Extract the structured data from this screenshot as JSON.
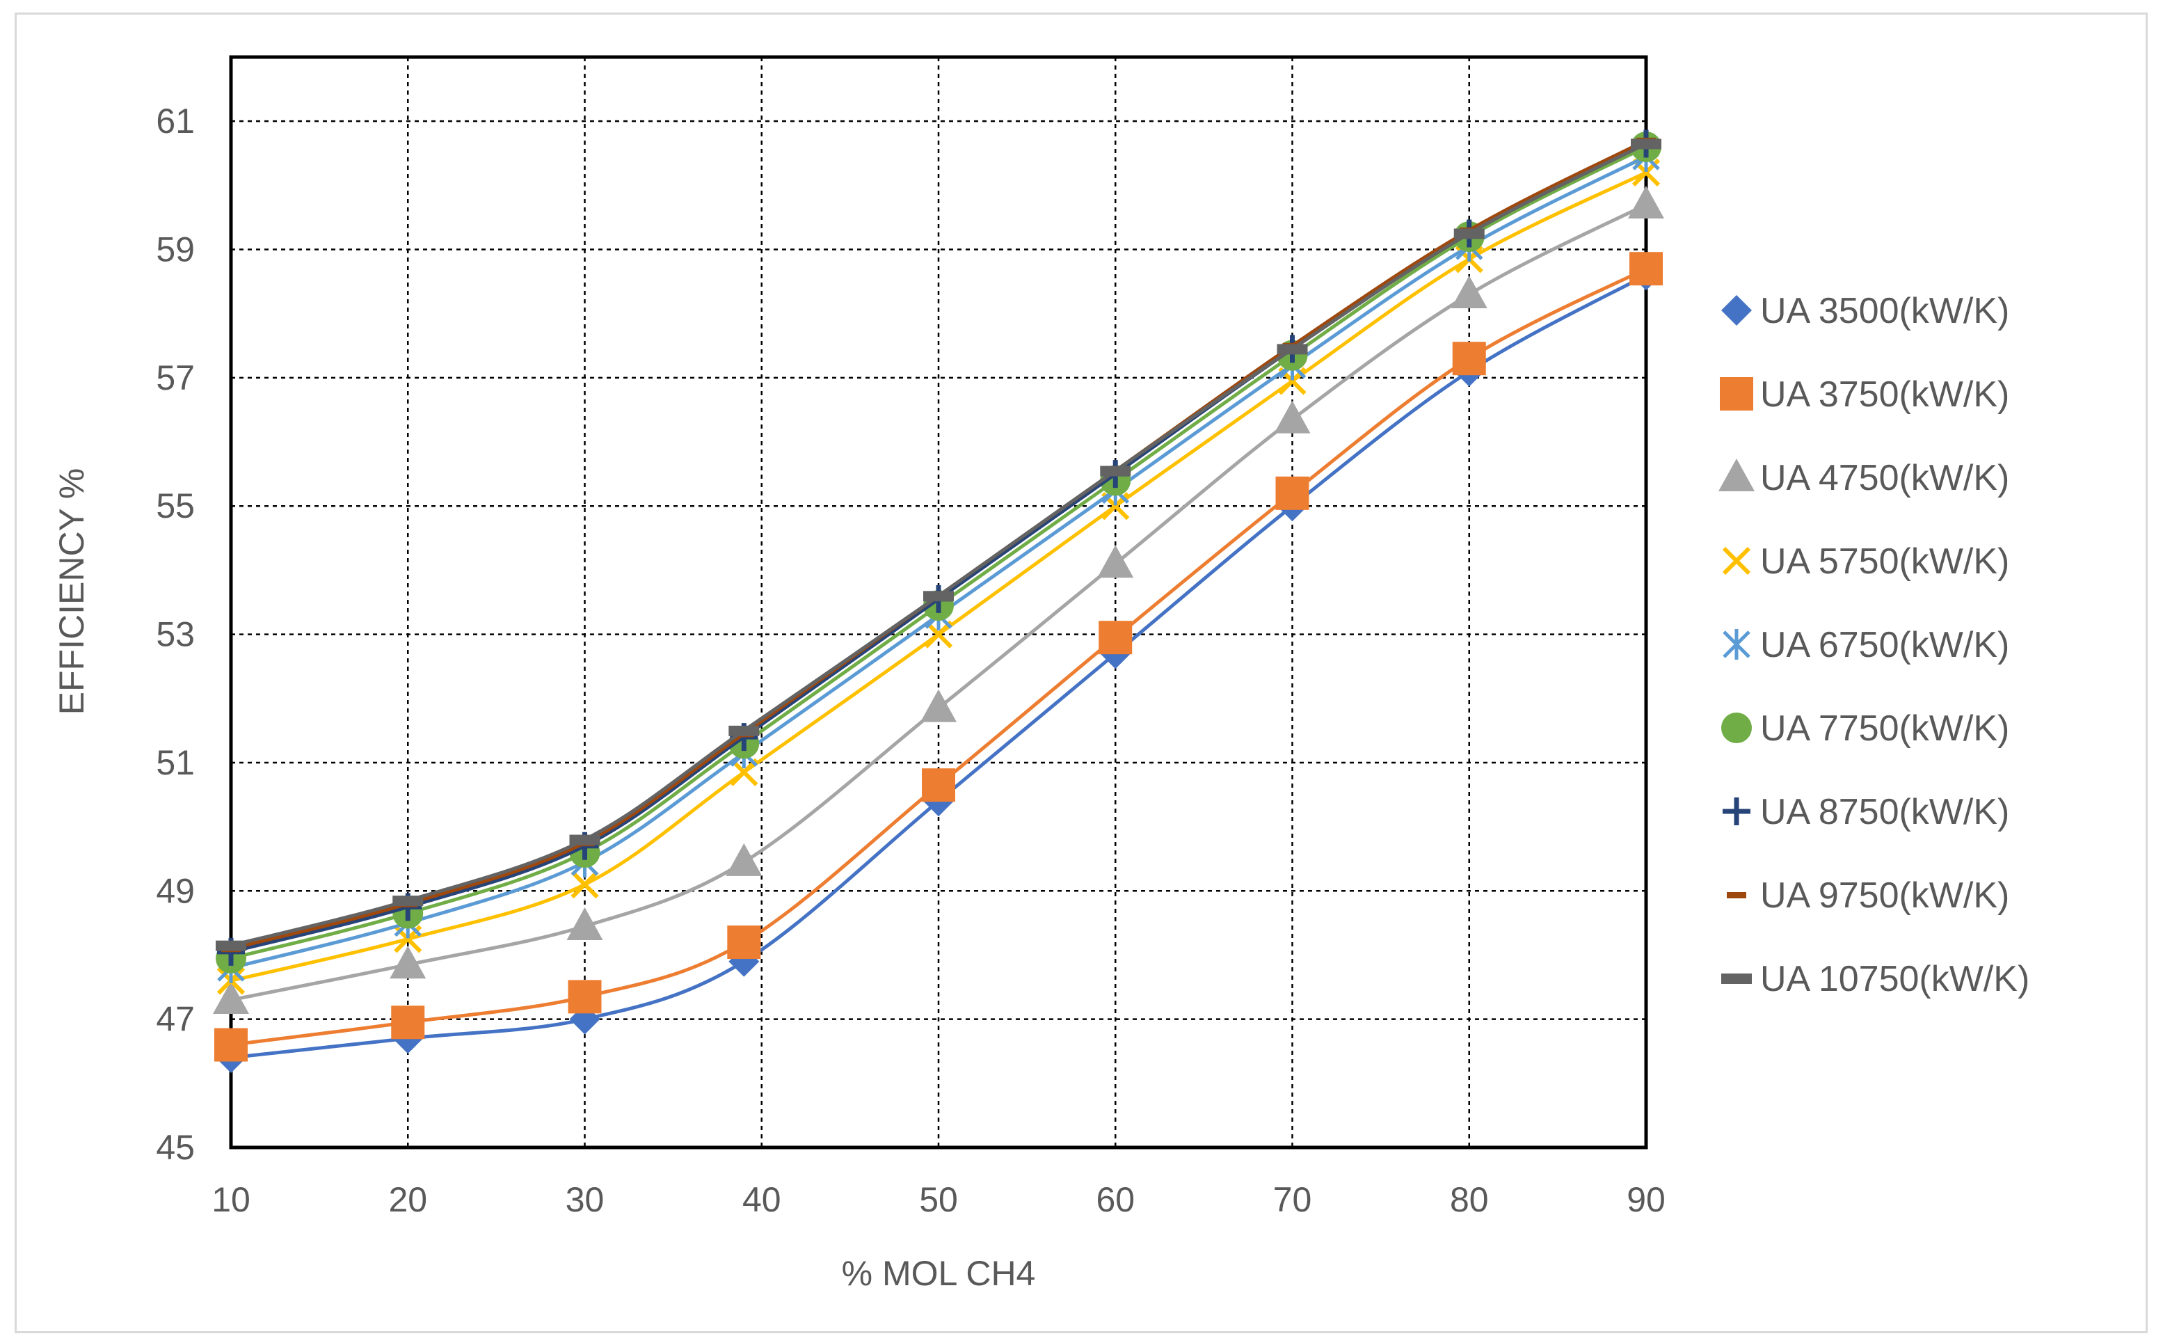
{
  "chart_data": {
    "type": "line",
    "title": "",
    "xlabel": "% MOL CH4",
    "ylabel": "EFFICIENCY %",
    "xlim": [
      10,
      90
    ],
    "ylim": [
      45,
      62
    ],
    "x_ticks": [
      10,
      20,
      30,
      40,
      50,
      60,
      70,
      80,
      90
    ],
    "y_ticks": [
      45,
      47,
      49,
      51,
      53,
      55,
      57,
      59,
      61
    ],
    "grid": true,
    "legend_position": "right",
    "smooth": true,
    "x": [
      10,
      20,
      30,
      39,
      50,
      60,
      70,
      80,
      90
    ],
    "series": [
      {
        "name": "UA 3500(kW/K)",
        "color": "#4472C4",
        "marker": "diamond",
        "values": [
          46.4,
          46.7,
          47.0,
          47.9,
          50.4,
          52.7,
          55.0,
          57.1,
          58.6
        ]
      },
      {
        "name": "UA 3750(kW/K)",
        "color": "#ED7D31",
        "marker": "square",
        "values": [
          46.6,
          46.95,
          47.35,
          48.2,
          50.65,
          52.95,
          55.2,
          57.3,
          58.7
        ]
      },
      {
        "name": "UA 4750(kW/K)",
        "color": "#A5A5A5",
        "marker": "triangle",
        "values": [
          47.3,
          47.85,
          48.45,
          49.45,
          51.85,
          54.1,
          56.35,
          58.3,
          59.7
        ]
      },
      {
        "name": "UA 5750(kW/K)",
        "color": "#FFC000",
        "marker": "x",
        "values": [
          47.6,
          48.25,
          49.1,
          50.85,
          53.0,
          55.0,
          56.95,
          58.85,
          60.2
        ]
      },
      {
        "name": "UA 6750(kW/K)",
        "color": "#5B9BD5",
        "marker": "asterisk",
        "values": [
          47.8,
          48.5,
          49.45,
          51.15,
          53.3,
          55.25,
          57.2,
          59.05,
          60.45
        ]
      },
      {
        "name": "UA 7750(kW/K)",
        "color": "#70AD47",
        "marker": "circle",
        "values": [
          47.95,
          48.65,
          49.6,
          51.3,
          53.45,
          55.4,
          57.35,
          59.2,
          60.6
        ]
      },
      {
        "name": "UA 8750(kW/K)",
        "color": "#264478",
        "marker": "plus",
        "values": [
          48.05,
          48.75,
          49.7,
          51.4,
          53.55,
          55.5,
          57.45,
          59.25,
          60.65
        ]
      },
      {
        "name": "UA 9750(kW/K)",
        "color": "#9E480E",
        "marker": "dash",
        "values": [
          48.1,
          48.8,
          49.75,
          51.45,
          53.6,
          55.55,
          57.5,
          59.3,
          60.7
        ]
      },
      {
        "name": "UA 10750(kW/K)",
        "color": "#636363",
        "marker": "bar",
        "values": [
          48.15,
          48.85,
          49.8,
          51.5,
          53.6,
          55.55,
          57.45,
          59.25,
          60.65
        ]
      }
    ]
  }
}
